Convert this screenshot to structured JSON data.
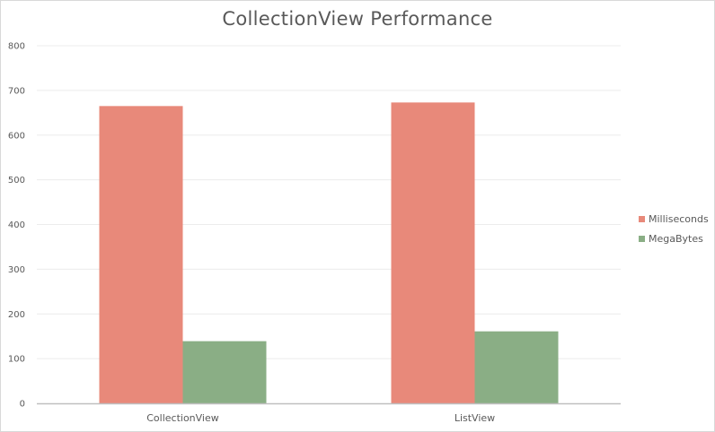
{
  "chart_data": {
    "type": "bar",
    "title": "CollectionView Performance",
    "categories": [
      "CollectionView",
      "ListView"
    ],
    "series": [
      {
        "name": "Milliseconds",
        "values": [
          665,
          673
        ],
        "color": "#e8897a"
      },
      {
        "name": "MegaBytes",
        "values": [
          139,
          161
        ],
        "color": "#8aae85"
      }
    ],
    "ylim": [
      0,
      800
    ],
    "yticks": [
      0,
      100,
      200,
      300,
      400,
      500,
      600,
      700,
      800
    ],
    "grid": true,
    "legend_position": "right",
    "axis_color": "#bfbfbf",
    "grid_color": "#ececec"
  }
}
